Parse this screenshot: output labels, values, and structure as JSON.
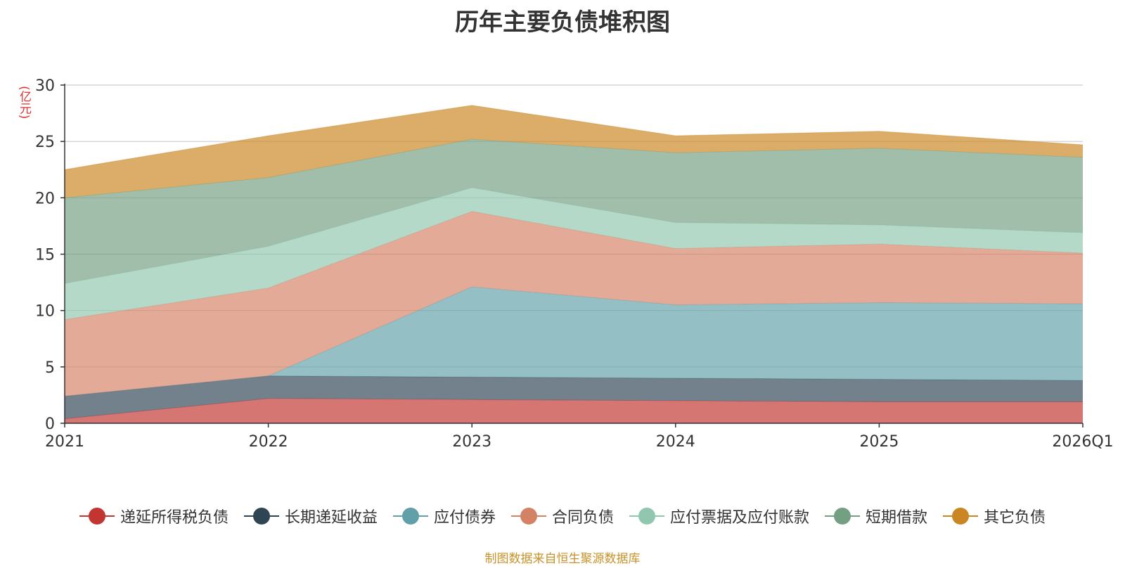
{
  "chart_data": {
    "type": "area",
    "stacked": true,
    "title": "历年主要负债堆积图",
    "ylabel": "(亿元)",
    "xlabel": "",
    "ylim": [
      0,
      30
    ],
    "yticks": [
      0,
      5,
      10,
      15,
      20,
      25,
      30
    ],
    "categories": [
      "2021",
      "2022",
      "2023",
      "2024",
      "2025",
      "2026Q1"
    ],
    "legend_position": "bottom",
    "grid": true,
    "series": [
      {
        "name": "递延所得税负债",
        "color": "#c23531",
        "values": [
          0.4,
          2.2,
          2.1,
          2.0,
          1.9,
          1.9
        ]
      },
      {
        "name": "长期递延收益",
        "color": "#2f4554",
        "values": [
          2.0,
          2.0,
          2.0,
          2.0,
          2.0,
          1.9
        ]
      },
      {
        "name": "应付债券",
        "color": "#61a0a8",
        "values": [
          0.0,
          0.0,
          8.0,
          6.5,
          6.8,
          6.8
        ]
      },
      {
        "name": "合同负债",
        "color": "#d48265",
        "values": [
          6.8,
          7.8,
          6.7,
          5.0,
          5.2,
          4.5
        ]
      },
      {
        "name": "应付票据及应付账款",
        "color": "#91c7ae",
        "values": [
          3.2,
          3.7,
          2.1,
          2.3,
          1.7,
          1.8
        ]
      },
      {
        "name": "短期借款",
        "color": "#749f83",
        "values": [
          7.6,
          6.1,
          4.3,
          6.2,
          6.8,
          6.7
        ]
      },
      {
        "name": "其它负债",
        "color": "#ca8622",
        "values": [
          2.5,
          3.7,
          3.0,
          1.5,
          1.5,
          1.1
        ]
      }
    ]
  },
  "source_note": "制图数据来自恒生聚源数据库"
}
